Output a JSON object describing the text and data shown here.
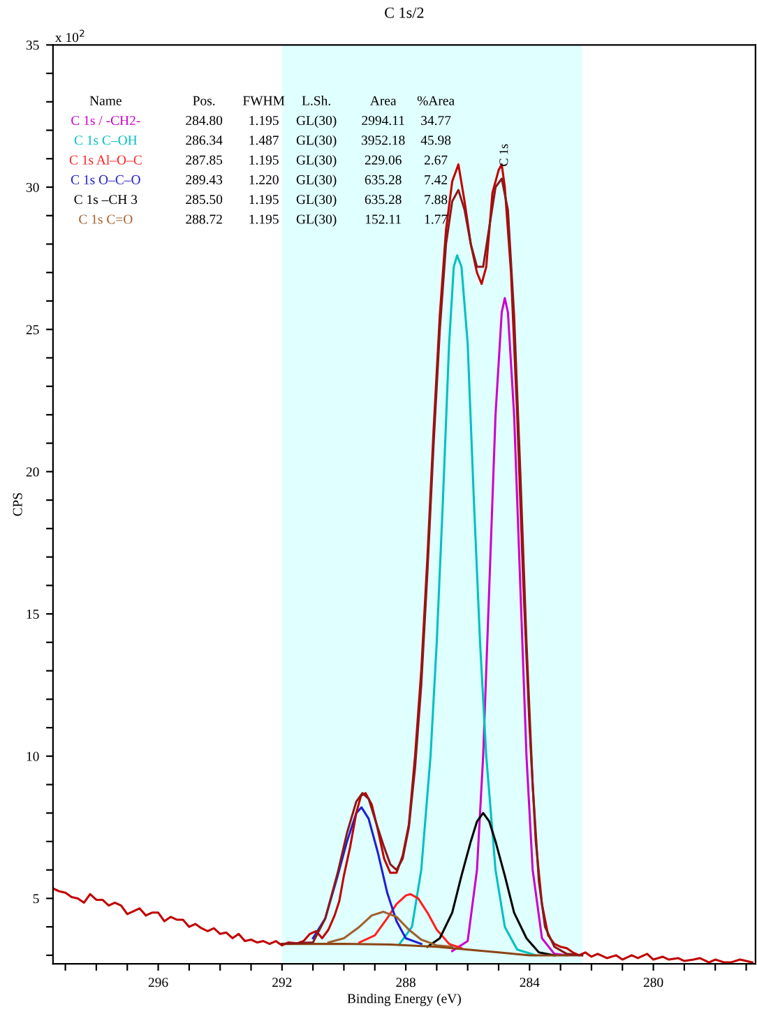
{
  "chart_data": {
    "type": "line",
    "title": "C 1s/2",
    "xlabel": "Binding Energy (eV)",
    "ylabel": "CPS",
    "xlim": [
      299.4,
      276.7
    ],
    "ylim": [
      2.7,
      35
    ],
    "xticks": [
      {
        "value": 299,
        "label": null
      },
      {
        "value": 298,
        "label": null
      },
      {
        "value": 297,
        "label": null
      },
      296,
      {
        "value": 295,
        "label": null
      },
      {
        "value": 294,
        "label": null
      },
      {
        "value": 293,
        "label": null
      },
      292,
      {
        "value": 291,
        "label": null
      },
      {
        "value": 290,
        "label": null
      },
      {
        "value": 289,
        "label": null
      },
      288,
      {
        "value": 287,
        "label": null
      },
      {
        "value": 286,
        "label": null
      },
      {
        "value": 285,
        "label": null
      },
      284,
      {
        "value": 283,
        "label": null
      },
      {
        "value": 282,
        "label": null
      },
      {
        "value": 281,
        "label": null
      },
      280,
      {
        "value": 279,
        "label": null
      },
      {
        "value": 278,
        "label": null
      },
      {
        "value": 277,
        "label": null
      }
    ],
    "yticks": [
      {
        "value": 3,
        "label": null
      },
      {
        "value": 4,
        "label": null
      },
      5,
      {
        "value": 6,
        "label": null
      },
      {
        "value": 7,
        "label": null
      },
      {
        "value": 8,
        "label": null
      },
      {
        "value": 9,
        "label": null
      },
      10,
      {
        "value": 11,
        "label": null
      },
      {
        "value": 12,
        "label": null
      },
      {
        "value": 13,
        "label": null
      },
      {
        "value": 14,
        "label": null
      },
      15,
      {
        "value": 16,
        "label": null
      },
      {
        "value": 17,
        "label": null
      },
      {
        "value": 18,
        "label": null
      },
      {
        "value": 19,
        "label": null
      },
      20,
      {
        "value": 21,
        "label": null
      },
      {
        "value": 22,
        "label": null
      },
      {
        "value": 23,
        "label": null
      },
      {
        "value": 24,
        "label": null
      },
      25,
      {
        "value": 26,
        "label": null
      },
      {
        "value": 27,
        "label": null
      },
      {
        "value": 28,
        "label": null
      },
      {
        "value": 29,
        "label": null
      },
      30,
      {
        "value": 31,
        "label": null
      },
      {
        "value": 32,
        "label": null
      },
      {
        "value": 33,
        "label": null
      },
      {
        "value": 34,
        "label": null
      },
      35
    ],
    "grid": false,
    "legend": false,
    "marker": "none",
    "line_style": "solid",
    "bands": [
      {
        "axis": "x",
        "from": 292,
        "to": 282.3,
        "color": "#e0ffff"
      }
    ],
    "series": [
      {
        "name": "C 1s / -CH2-",
        "color": "#cc00cc",
        "x": [
          286.5,
          286.0,
          285.7,
          285.5,
          285.3,
          285.1,
          284.9,
          284.8,
          284.7,
          284.5,
          284.3,
          284.1,
          283.9,
          283.6,
          283.2,
          282.8
        ],
        "values": [
          3.15,
          3.5,
          6,
          10,
          16,
          22,
          25.6,
          26.1,
          25.6,
          22,
          16,
          10,
          6,
          3.6,
          3.05,
          3.0
        ]
      },
      {
        "name": "C 1s C–OH",
        "color": "#00c0c0",
        "x": [
          288.2,
          287.8,
          287.5,
          287.2,
          287.0,
          286.8,
          286.6,
          286.45,
          286.34,
          286.2,
          286.0,
          285.8,
          285.6,
          285.4,
          285.1,
          284.8,
          284.4,
          283.8
        ],
        "values": [
          3.4,
          4,
          6,
          10,
          14,
          19,
          24.5,
          27.2,
          27.6,
          27.2,
          24.5,
          19,
          14,
          10,
          6,
          4,
          3.2,
          3.0
        ]
      },
      {
        "name": "C 1s Al–O–C",
        "color": "#ff2020",
        "x": [
          289.5,
          289.0,
          288.6,
          288.3,
          288.0,
          287.85,
          287.6,
          287.3,
          287.0,
          286.6,
          286.2
        ],
        "values": [
          3.45,
          3.7,
          4.3,
          4.8,
          5.1,
          5.15,
          5.0,
          4.5,
          3.9,
          3.4,
          3.25
        ]
      },
      {
        "name": "C 1s O–C–O",
        "color": "#2020d0",
        "x": [
          291.0,
          290.6,
          290.2,
          289.9,
          289.6,
          289.43,
          289.2,
          288.9,
          288.6,
          288.3,
          288.0,
          287.5
        ],
        "values": [
          3.6,
          4.3,
          5.8,
          7.0,
          8.0,
          8.2,
          7.8,
          6.6,
          5.2,
          4.2,
          3.6,
          3.4
        ]
      },
      {
        "name": "C 1s –CH 3",
        "color": "#000000",
        "x": [
          287.3,
          286.9,
          286.5,
          286.2,
          285.9,
          285.7,
          285.5,
          285.3,
          285.1,
          284.8,
          284.5,
          284.1,
          283.7,
          283.2
        ],
        "values": [
          3.3,
          3.6,
          4.5,
          5.8,
          7.0,
          7.7,
          8.0,
          7.7,
          7.0,
          5.8,
          4.5,
          3.6,
          3.1,
          3.0
        ]
      },
      {
        "name": "C 1s C=O",
        "color": "#a0602d",
        "x": [
          290.5,
          290.0,
          289.5,
          289.1,
          288.72,
          288.3,
          287.9,
          287.5,
          287.0,
          286.5
        ],
        "values": [
          3.45,
          3.6,
          4.0,
          4.4,
          4.53,
          4.35,
          3.9,
          3.55,
          3.35,
          3.3
        ]
      },
      {
        "color": "#8b4513",
        "x": [
          292,
          290,
          288.5,
          287,
          286,
          285,
          284,
          282.3
        ],
        "values": [
          3.4,
          3.4,
          3.38,
          3.3,
          3.2,
          3.1,
          3.0,
          3.0
        ]
      },
      {
        "color": "#c00000",
        "x": [
          299.4,
          299.2,
          299.0,
          298.8,
          298.6,
          298.4,
          298.2,
          298.0,
          297.8,
          297.6,
          297.4,
          297.2,
          297.0,
          296.8,
          296.6,
          296.4,
          296.2,
          296.0,
          295.8,
          295.6,
          295.4,
          295.2,
          295.0,
          294.8,
          294.6,
          294.4,
          294.2,
          294.0,
          293.8,
          293.6,
          293.4,
          293.2,
          293.0,
          292.8,
          292.6,
          292.4,
          292.2,
          292.0,
          291.8,
          291.5,
          291.3,
          291.1,
          290.9,
          290.7,
          290.5,
          290.3,
          290.15,
          290.0,
          289.8,
          289.6,
          289.45,
          289.3,
          289.1,
          288.9,
          288.7,
          288.5,
          288.3,
          288.1,
          287.9,
          287.7,
          287.5,
          287.3,
          287.1,
          286.9,
          286.7,
          286.5,
          286.3,
          286.1,
          285.9,
          285.7,
          285.55,
          285.4,
          285.2,
          285.0,
          284.9,
          284.8,
          284.6,
          284.4,
          284.2,
          284.0,
          283.8,
          283.6,
          283.4,
          283.2,
          283.0,
          282.8,
          282.6,
          282.4,
          282.2,
          282.0,
          281.8,
          281.5,
          281.2,
          281.0,
          280.7,
          280.5,
          280.2,
          280.0,
          279.7,
          279.5,
          279.2,
          279.0,
          278.7,
          278.5,
          278.2,
          278.0,
          277.7,
          277.5,
          277.2,
          277.0,
          276.8
        ],
        "values": [
          5.35,
          5.25,
          5.2,
          5.05,
          5.0,
          4.85,
          5.15,
          4.95,
          4.95,
          4.75,
          4.85,
          4.75,
          4.45,
          4.55,
          4.65,
          4.4,
          4.5,
          4.5,
          4.2,
          4.35,
          4.25,
          4.25,
          4.0,
          4.1,
          3.95,
          3.85,
          3.95,
          3.75,
          3.8,
          3.6,
          3.75,
          3.5,
          3.55,
          3.45,
          3.5,
          3.4,
          3.5,
          3.35,
          3.45,
          3.42,
          3.5,
          3.75,
          3.85,
          3.6,
          3.9,
          4.4,
          4.9,
          5.8,
          6.8,
          8.0,
          8.6,
          8.7,
          8.3,
          7.4,
          6.4,
          5.9,
          5.9,
          6.5,
          7.6,
          10,
          13,
          17,
          21.5,
          25.5,
          28.5,
          30.2,
          30.8,
          29.5,
          28.0,
          27.0,
          26.6,
          27.2,
          29.8,
          30.6,
          30.8,
          30.0,
          27,
          22,
          16,
          11,
          7,
          4.8,
          3.7,
          3.4,
          3.3,
          3.25,
          3.1,
          3.0,
          3.1,
          2.95,
          3.05,
          2.9,
          3.0,
          2.85,
          3.0,
          2.9,
          3.05,
          2.85,
          2.95,
          2.85,
          2.9,
          2.8,
          2.85,
          2.9,
          2.75,
          2.85,
          2.75,
          2.75,
          2.85,
          2.8,
          2.75
        ]
      },
      {
        "color": "#8b1a1a",
        "x": [
          292,
          291,
          290.6,
          290.2,
          289.9,
          289.6,
          289.4,
          289.2,
          289.0,
          288.7,
          288.5,
          288.3,
          288.1,
          287.9,
          287.7,
          287.5,
          287.3,
          287.1,
          286.9,
          286.7,
          286.5,
          286.3,
          286.1,
          285.9,
          285.7,
          285.5,
          285.3,
          285.1,
          284.9,
          284.7,
          284.5,
          284.3,
          284.1,
          283.9,
          283.7,
          283.5,
          283.2,
          282.8,
          282.3
        ],
        "values": [
          3.4,
          3.45,
          4.3,
          5.9,
          7.3,
          8.4,
          8.7,
          8.5,
          7.8,
          6.8,
          6.2,
          6.0,
          6.4,
          7.5,
          9.6,
          12.5,
          16.5,
          21,
          25,
          28,
          29.5,
          29.9,
          29.2,
          28.0,
          27.2,
          27.2,
          28.6,
          30.0,
          30.3,
          29.2,
          25.5,
          20,
          14,
          9,
          5.6,
          4.0,
          3.3,
          3.05,
          3.0
        ]
      }
    ],
    "annotations": [
      "x 10$^{2}$",
      "C 1s",
      "Name",
      "Pos.",
      "FWHM",
      "L.Sh.",
      "Area",
      "%Area",
      "284.80",
      "1.195",
      "GL(30)",
      "2994.11",
      "34.77",
      "286.34",
      "1.487",
      "GL(30)",
      "3952.18",
      "45.98",
      "287.85",
      "1.195",
      "GL(30)",
      "229.06",
      "2.67",
      "289.43",
      "1.220",
      "GL(30)",
      "635.28",
      "7.42",
      "285.50",
      "1.195",
      "GL(30)",
      "635.28",
      "7.88",
      "288.72",
      "1.195",
      "GL(30)",
      "152.11",
      "1.77"
    ]
  }
}
